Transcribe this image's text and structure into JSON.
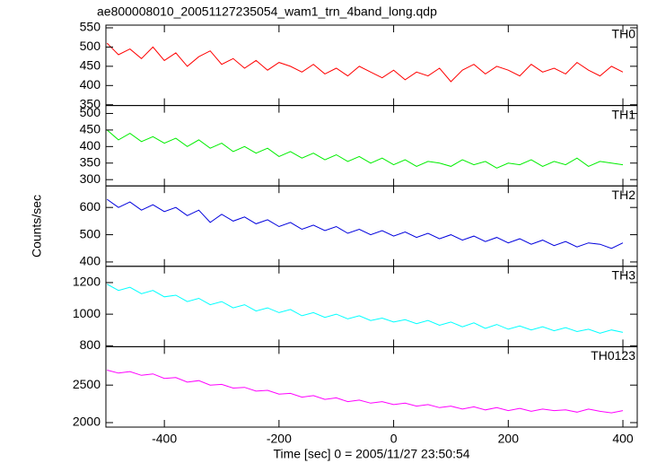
{
  "chart_data": {
    "type": "line",
    "title": "ae800008010_20051127235054_wam1_trn_4band_long.qdp",
    "xlabel": "Time [sec] 0 = 2005/11/27 23:50:54",
    "ylabel": "Counts/sec",
    "xlim": [
      -502,
      425
    ],
    "xticks": [
      -400,
      -200,
      0,
      200,
      400
    ],
    "x": [
      -500,
      -480,
      -460,
      -440,
      -420,
      -400,
      -380,
      -360,
      -340,
      -320,
      -300,
      -280,
      -260,
      -240,
      -220,
      -200,
      -180,
      -160,
      -140,
      -120,
      -100,
      -80,
      -60,
      -40,
      -20,
      0,
      20,
      40,
      60,
      80,
      100,
      120,
      140,
      160,
      180,
      200,
      220,
      240,
      260,
      280,
      300,
      320,
      340,
      360,
      380,
      400
    ],
    "series": [
      {
        "name": "TH0",
        "color": "#ff0000",
        "ylim": [
          348,
          557
        ],
        "yticks": [
          350,
          400,
          450,
          500,
          550
        ],
        "values": [
          510,
          480,
          495,
          470,
          500,
          465,
          485,
          450,
          475,
          490,
          455,
          470,
          445,
          465,
          440,
          460,
          450,
          435,
          455,
          430,
          445,
          425,
          450,
          435,
          420,
          440,
          415,
          435,
          425,
          445,
          410,
          440,
          455,
          430,
          450,
          440,
          425,
          455,
          435,
          445,
          430,
          460,
          440,
          425,
          450,
          435
        ]
      },
      {
        "name": "TH1",
        "color": "#00ee00",
        "ylim": [
          281,
          524
        ],
        "yticks": [
          300,
          350,
          400,
          450,
          500
        ],
        "values": [
          450,
          420,
          440,
          415,
          430,
          410,
          425,
          400,
          420,
          395,
          410,
          385,
          400,
          380,
          395,
          370,
          385,
          365,
          380,
          360,
          375,
          355,
          370,
          350,
          365,
          345,
          360,
          340,
          355,
          350,
          340,
          360,
          345,
          355,
          335,
          350,
          345,
          360,
          340,
          355,
          345,
          365,
          340,
          355,
          350,
          345
        ]
      },
      {
        "name": "TH2",
        "color": "#0000dd",
        "ylim": [
          384,
          679
        ],
        "yticks": [
          400,
          500,
          600
        ],
        "values": [
          630,
          600,
          620,
          590,
          610,
          585,
          600,
          570,
          590,
          545,
          575,
          550,
          565,
          540,
          555,
          530,
          545,
          520,
          535,
          515,
          530,
          505,
          520,
          500,
          515,
          495,
          510,
          490,
          505,
          485,
          500,
          480,
          495,
          475,
          490,
          470,
          485,
          465,
          480,
          460,
          475,
          455,
          470,
          465,
          450,
          470
        ]
      },
      {
        "name": "TH3",
        "color": "#00ffff",
        "ylim": [
          794,
          1303
        ],
        "yticks": [
          800,
          1000,
          1200
        ],
        "values": [
          1190,
          1150,
          1170,
          1130,
          1150,
          1110,
          1120,
          1080,
          1100,
          1060,
          1080,
          1040,
          1060,
          1020,
          1040,
          1010,
          1030,
          990,
          1010,
          980,
          1000,
          970,
          990,
          960,
          975,
          950,
          965,
          940,
          960,
          930,
          950,
          920,
          945,
          910,
          935,
          905,
          925,
          900,
          920,
          895,
          915,
          890,
          905,
          880,
          900,
          885
        ]
      },
      {
        "name": "TH0123",
        "color": "#ff00ff",
        "ylim": [
          1940,
          3012
        ],
        "yticks": [
          2000,
          2500
        ],
        "values": [
          2700,
          2660,
          2680,
          2630,
          2650,
          2590,
          2600,
          2540,
          2560,
          2500,
          2510,
          2460,
          2470,
          2420,
          2430,
          2380,
          2390,
          2340,
          2360,
          2310,
          2330,
          2280,
          2300,
          2260,
          2280,
          2240,
          2260,
          2220,
          2240,
          2200,
          2220,
          2180,
          2210,
          2170,
          2200,
          2160,
          2190,
          2150,
          2180,
          2160,
          2170,
          2140,
          2180,
          2150,
          2130,
          2160
        ]
      }
    ]
  }
}
